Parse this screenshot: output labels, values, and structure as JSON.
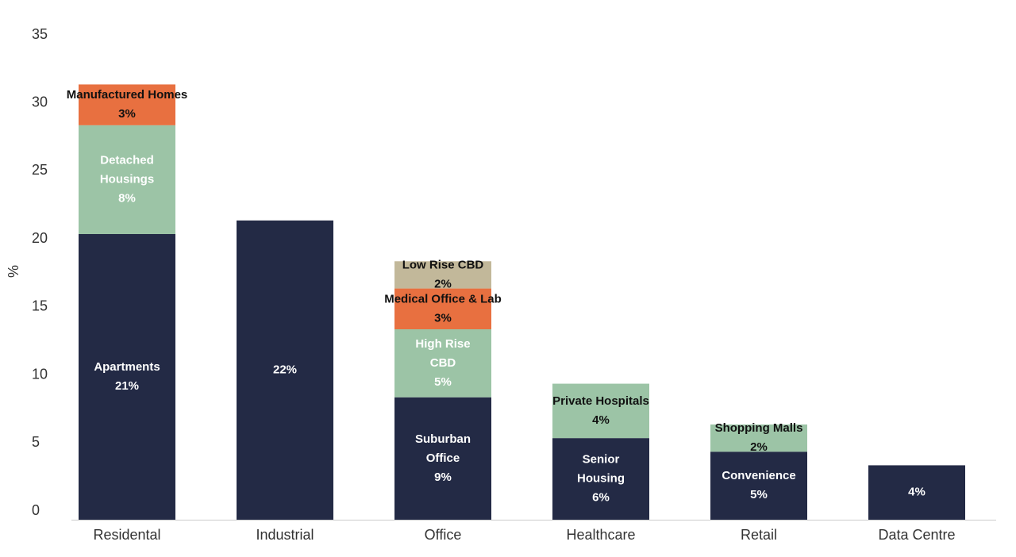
{
  "chart_data": {
    "type": "stacked_bar",
    "y_label": "%",
    "categories": [
      "Residental",
      "Industrial",
      "Office",
      "Healthcare",
      "Retail",
      "Data Centre"
    ],
    "ylim": [
      0,
      35
    ],
    "yticks": [
      0,
      5,
      10,
      15,
      20,
      25,
      30,
      35
    ],
    "series": [
      {
        "name": "Apartments",
        "color": "#232a45",
        "label_color": "#ffffff",
        "values": [
          21,
          null,
          null,
          null,
          null,
          null
        ],
        "value_labels": [
          "21%",
          null,
          null,
          null,
          null,
          null
        ]
      },
      {
        "name": "Detached Housings",
        "color": "#9cc4a6",
        "label_color": "#ffffff",
        "values": [
          8,
          null,
          null,
          null,
          null,
          null
        ],
        "value_labels": [
          "8%",
          null,
          null,
          null,
          null,
          null
        ]
      },
      {
        "name": "Manufactured Homes",
        "color": "#e87040",
        "label_color": "#111111",
        "values": [
          3,
          null,
          null,
          null,
          null,
          null
        ],
        "value_labels": [
          "3%",
          null,
          null,
          null,
          null,
          null
        ]
      },
      {
        "color": "#232a45",
        "label_color": "#ffffff",
        "values": [
          null,
          22,
          null,
          null,
          null,
          null
        ],
        "value_labels": [
          null,
          "22%",
          null,
          null,
          null,
          null
        ]
      },
      {
        "name": "Suburban Office",
        "color": "#232a45",
        "label_color": "#ffffff",
        "values": [
          null,
          null,
          9,
          null,
          null,
          null
        ],
        "value_labels": [
          null,
          null,
          "9%",
          null,
          null,
          null
        ]
      },
      {
        "name": "High Rise CBD",
        "color": "#9cc4a6",
        "label_color": "#ffffff",
        "values": [
          null,
          null,
          5,
          null,
          null,
          null
        ],
        "value_labels": [
          null,
          null,
          "5%",
          null,
          null,
          null
        ]
      },
      {
        "name": "Medical Office & Lab",
        "color": "#e87040",
        "label_color": "#111111",
        "values": [
          null,
          null,
          3,
          null,
          null,
          null
        ],
        "value_labels": [
          null,
          null,
          "3%",
          null,
          null,
          null
        ]
      },
      {
        "name": "Low Rise CBD",
        "color": "#c2b89a",
        "label_color": "#111111",
        "values": [
          null,
          null,
          2,
          null,
          null,
          null
        ],
        "value_labels": [
          null,
          null,
          "2%",
          null,
          null,
          null
        ]
      },
      {
        "name": "Senior Housing",
        "color": "#232a45",
        "label_color": "#ffffff",
        "values": [
          null,
          null,
          null,
          6,
          null,
          null
        ],
        "value_labels": [
          null,
          null,
          null,
          "6%",
          null,
          null
        ]
      },
      {
        "name": "Private Hospitals",
        "color": "#9cc4a6",
        "label_color": "#111111",
        "values": [
          null,
          null,
          null,
          4,
          null,
          null
        ],
        "value_labels": [
          null,
          null,
          null,
          "4%",
          null,
          null
        ]
      },
      {
        "name": "Convenience",
        "color": "#232a45",
        "label_color": "#ffffff",
        "values": [
          null,
          null,
          null,
          null,
          5,
          null
        ],
        "value_labels": [
          null,
          null,
          null,
          null,
          "5%",
          null
        ]
      },
      {
        "name": "Shopping Malls",
        "color": "#9cc4a6",
        "label_color": "#111111",
        "values": [
          null,
          null,
          null,
          null,
          2,
          null
        ],
        "value_labels": [
          null,
          null,
          null,
          null,
          "2%",
          null
        ]
      },
      {
        "color": "#232a45",
        "label_color": "#ffffff",
        "values": [
          null,
          null,
          null,
          null,
          null,
          4
        ],
        "value_labels": [
          null,
          null,
          null,
          null,
          null,
          "4%"
        ]
      }
    ]
  }
}
